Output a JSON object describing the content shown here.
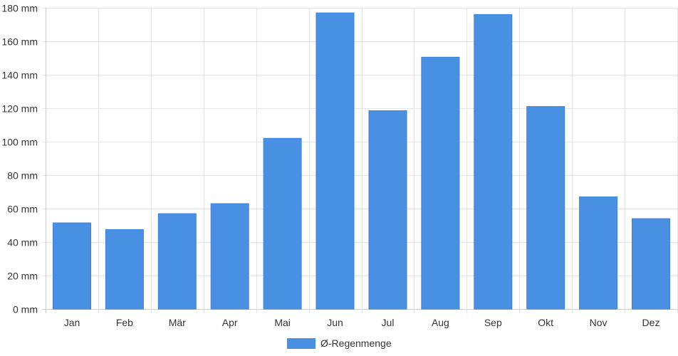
{
  "chart_data": {
    "type": "bar",
    "categories": [
      "Jan",
      "Feb",
      "Mär",
      "Apr",
      "Mai",
      "Jun",
      "Jul",
      "Aug",
      "Sep",
      "Okt",
      "Nov",
      "Dez"
    ],
    "series": [
      {
        "name": "Ø-Regenmenge",
        "color": "#4a90e2",
        "values": [
          51.5,
          47.5,
          57,
          63,
          102,
          177,
          118.5,
          150.5,
          176,
          121,
          67,
          54
        ]
      }
    ],
    "y_ticks": [
      "0 mm",
      "20 mm",
      "40 mm",
      "60 mm",
      "80 mm",
      "100 mm",
      "120 mm",
      "140 mm",
      "160 mm",
      "180 mm"
    ],
    "ylim": [
      0,
      180
    ],
    "grid": true,
    "legend_position": "bottom-center"
  }
}
